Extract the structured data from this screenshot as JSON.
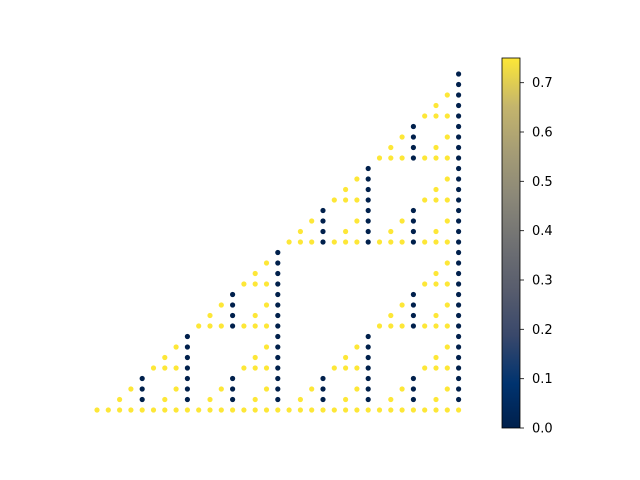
{
  "chart_data": {
    "type": "scatter",
    "title": "",
    "xlabel": "",
    "ylabel": "",
    "axes_visible": false,
    "grid": false,
    "pattern": "Sierpinski-like triangle of dots, 33 columns x 33 rows; lower-right triangular region filled; dot color encodes value",
    "x_range": [
      0,
      32
    ],
    "y_range": [
      0,
      32
    ],
    "colormap": "cividis",
    "colorbar": {
      "vmin": 0.0,
      "vmax": 0.75,
      "ticks": [
        "0.0",
        "0.1",
        "0.2",
        "0.3",
        "0.4",
        "0.5",
        "0.6",
        "0.7"
      ],
      "placement": "right"
    },
    "value_high": 0.75,
    "value_low": 0.0
  },
  "colors": {
    "high": "#fde737",
    "low": "#00204c"
  }
}
